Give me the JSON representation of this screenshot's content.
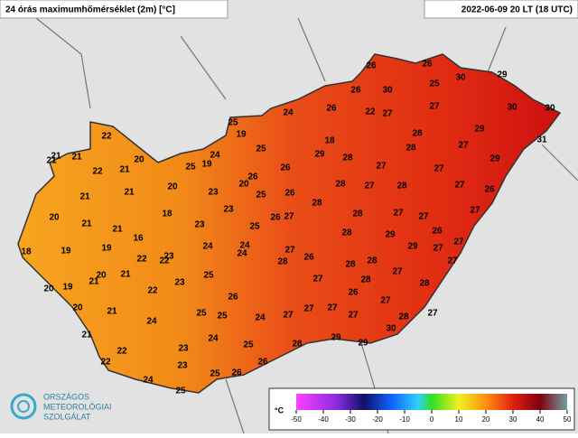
{
  "header": {
    "title": "24 órás maximumhőmérséklet (2m) [°C]",
    "time": "2022-06-09 20 LT (18 UTC)"
  },
  "logo": {
    "lines": [
      "ORSZÁGOS",
      "METEOROLÓGIAI",
      "SZOLGÁLAT"
    ]
  },
  "colorbar": {
    "unit": "°C",
    "ticks": [
      -50,
      -40,
      -30,
      -20,
      -10,
      0,
      10,
      20,
      30,
      40,
      50
    ]
  },
  "stations": [
    21,
    21,
    22,
    21,
    20,
    21,
    22,
    25,
    19,
    24,
    19,
    25,
    24,
    20,
    21,
    21,
    23,
    20,
    26,
    26,
    25,
    25,
    20,
    21,
    21,
    18,
    16,
    23,
    23,
    25,
    26,
    26,
    18,
    19,
    19,
    22,
    22,
    24,
    24,
    24,
    21,
    20,
    21,
    23,
    25,
    19,
    20,
    22,
    23,
    26,
    20,
    21,
    25,
    25,
    24,
    24,
    27,
    21,
    27,
    22,
    23,
    24,
    25,
    28,
    22,
    23,
    25,
    26,
    26,
    24,
    25,
    29,
    29,
    30,
    28,
    27,
    26,
    26,
    30,
    30,
    25,
    29,
    26,
    26,
    22,
    27,
    27,
    30,
    30,
    29,
    28,
    28,
    27,
    31,
    18,
    29,
    28,
    27,
    27,
    29,
    28,
    27,
    28,
    27,
    26,
    28,
    28,
    27,
    27,
    27,
    28,
    29,
    29,
    26,
    27,
    27,
    26,
    28,
    28,
    28,
    27,
    27,
    28,
    27,
    27,
    26,
    27,
    28,
    27,
    27,
    27
  ]
}
